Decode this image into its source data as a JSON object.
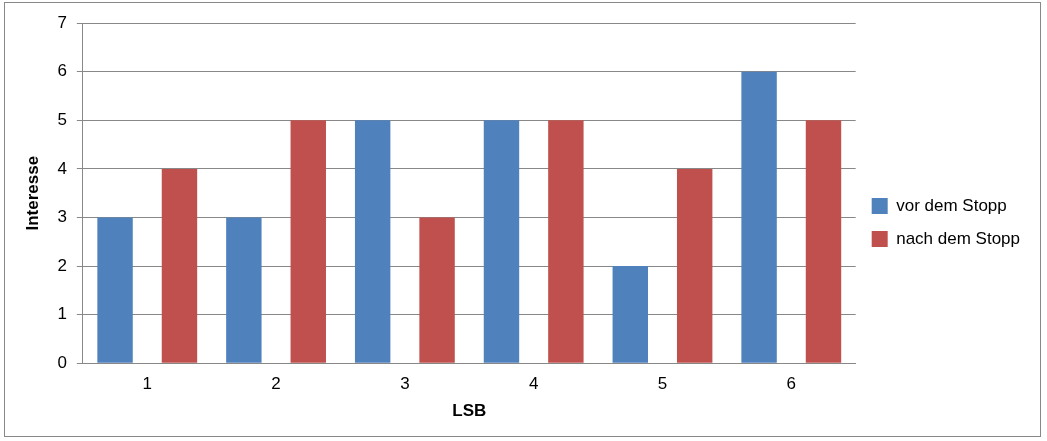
{
  "chart_data": {
    "type": "bar",
    "xlabel": "LSB",
    "ylabel": "Interesse",
    "categories": [
      "1",
      "2",
      "3",
      "4",
      "5",
      "6"
    ],
    "series": [
      {
        "name": "vor dem Stopp",
        "color": "#4f81bd",
        "values": [
          3,
          3,
          5,
          5,
          2,
          6
        ]
      },
      {
        "name": "nach dem Stopp",
        "color": "#c0504d",
        "values": [
          4,
          5,
          3,
          5,
          4,
          5
        ]
      }
    ],
    "ylim": [
      0,
      7
    ],
    "yticks": [
      0,
      1,
      2,
      3,
      4,
      5,
      6,
      7
    ],
    "grid": "y",
    "legend": "right"
  }
}
